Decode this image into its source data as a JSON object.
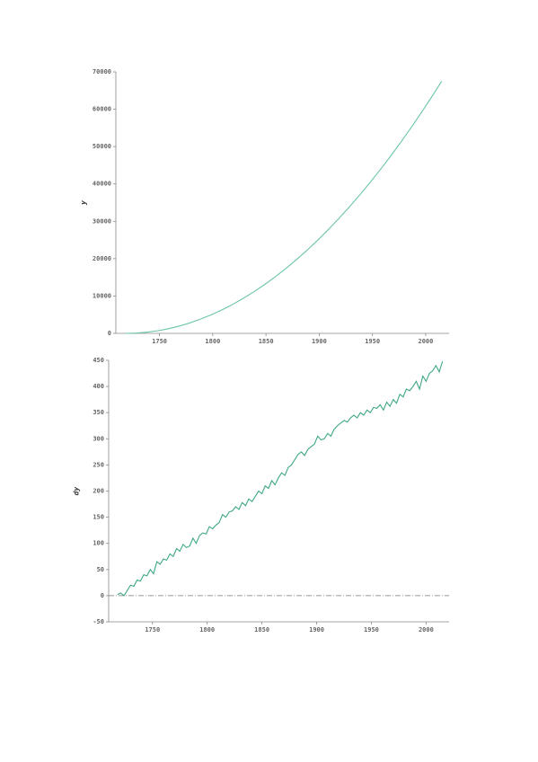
{
  "chart_data": [
    {
      "type": "line",
      "ylabel": "y",
      "color": "#6cc6a4",
      "x": [
        1718,
        1728,
        1738,
        1748,
        1758,
        1768,
        1778,
        1788,
        1798,
        1808,
        1818,
        1828,
        1838,
        1848,
        1858,
        1868,
        1878,
        1888,
        1898,
        1908,
        1918,
        1928,
        1938,
        1948,
        1958,
        1968,
        1978,
        1988,
        1998,
        2008,
        2015
      ],
      "values": [
        0,
        77,
        306,
        689,
        1224,
        1913,
        2754,
        3749,
        4896,
        6197,
        7650,
        9257,
        11016,
        12929,
        14994,
        17213,
        19584,
        22109,
        24786,
        27617,
        30600,
        33737,
        37026,
        40469,
        44064,
        47813,
        51714,
        55769,
        59976,
        64337,
        67483
      ],
      "xlim": [
        1709,
        2022
      ],
      "xticks": [
        1750,
        1800,
        1850,
        1900,
        1950,
        2000
      ],
      "ylim": [
        0,
        70000
      ],
      "yticks": [
        0,
        10000,
        20000,
        30000,
        40000,
        50000,
        60000,
        70000
      ]
    },
    {
      "type": "line",
      "ylabel": "dy",
      "color": "#3ea880",
      "hline": 0,
      "x": [
        1718,
        1721,
        1724,
        1727,
        1730,
        1733,
        1736,
        1739,
        1742,
        1745,
        1748,
        1751,
        1754,
        1757,
        1760,
        1763,
        1766,
        1769,
        1772,
        1775,
        1778,
        1781,
        1784,
        1787,
        1790,
        1793,
        1796,
        1799,
        1802,
        1805,
        1808,
        1811,
        1814,
        1817,
        1820,
        1823,
        1826,
        1829,
        1832,
        1835,
        1838,
        1841,
        1844,
        1847,
        1850,
        1853,
        1856,
        1859,
        1862,
        1865,
        1868,
        1871,
        1874,
        1877,
        1880,
        1883,
        1886,
        1889,
        1892,
        1895,
        1898,
        1901,
        1904,
        1907,
        1910,
        1913,
        1916,
        1919,
        1922,
        1925,
        1928,
        1931,
        1934,
        1937,
        1940,
        1943,
        1946,
        1949,
        1952,
        1955,
        1958,
        1961,
        1964,
        1967,
        1970,
        1973,
        1976,
        1979,
        1982,
        1985,
        1988,
        1991,
        1994,
        1997,
        2000,
        2003,
        2006,
        2009,
        2012,
        2015
      ],
      "values": [
        2,
        5,
        0,
        10,
        20,
        18,
        30,
        28,
        40,
        38,
        50,
        42,
        65,
        60,
        70,
        68,
        80,
        75,
        90,
        85,
        98,
        92,
        95,
        110,
        100,
        115,
        120,
        118,
        132,
        128,
        135,
        140,
        155,
        150,
        160,
        162,
        170,
        165,
        178,
        172,
        185,
        180,
        190,
        200,
        195,
        210,
        205,
        220,
        212,
        225,
        235,
        230,
        245,
        250,
        260,
        270,
        275,
        268,
        280,
        285,
        290,
        305,
        298,
        300,
        310,
        305,
        318,
        325,
        330,
        335,
        332,
        340,
        345,
        340,
        350,
        345,
        355,
        350,
        360,
        358,
        365,
        355,
        370,
        362,
        375,
        368,
        385,
        380,
        395,
        392,
        400,
        410,
        395,
        420,
        410,
        425,
        430,
        440,
        428,
        448
      ],
      "xlim": [
        1710,
        2021
      ],
      "xticks": [
        1750,
        1800,
        1850,
        1900,
        1950,
        2000
      ],
      "ylim": [
        -50,
        450
      ],
      "yticks": [
        -50,
        0,
        50,
        100,
        150,
        200,
        250,
        300,
        350,
        400,
        450
      ]
    }
  ]
}
